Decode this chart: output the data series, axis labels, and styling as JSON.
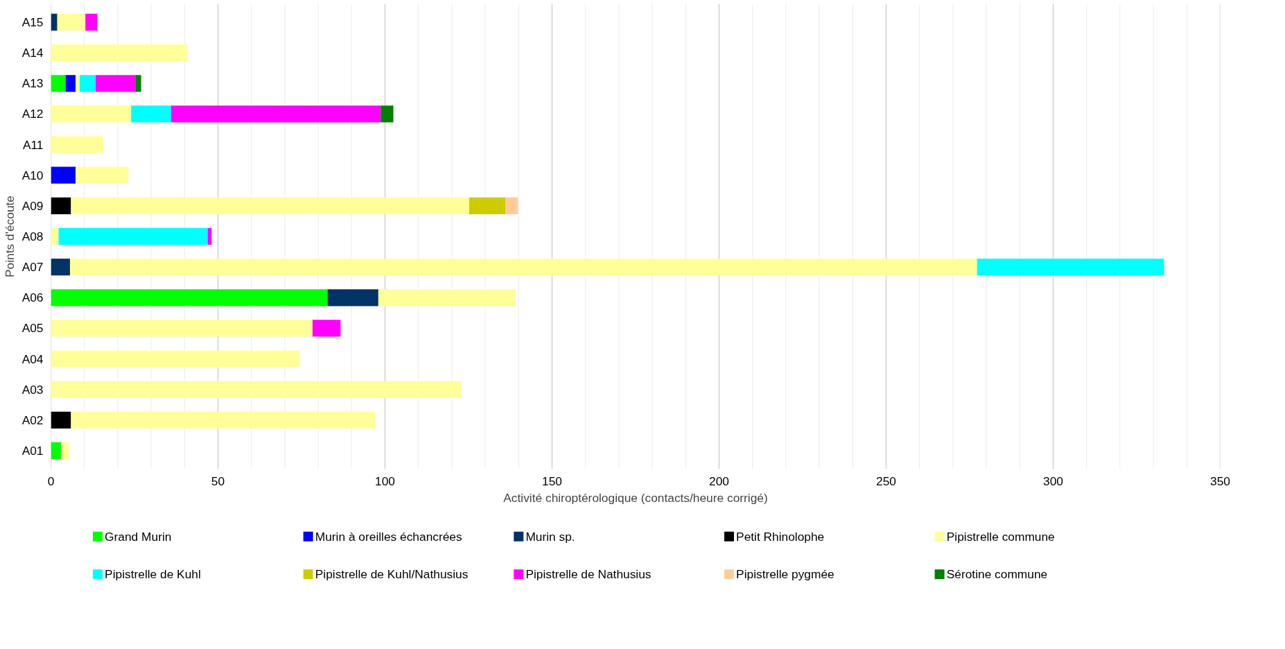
{
  "chart_data": {
    "type": "bar",
    "orientation": "horizontal",
    "stacked": true,
    "xlabel": "Activité chiroptérologique (contacts/heure corrigé)",
    "ylabel": "Points d'écoute",
    "categories": [
      "A15",
      "A14",
      "A13",
      "A12",
      "A11",
      "A10",
      "A09",
      "A08",
      "A07",
      "A06",
      "A05",
      "A04",
      "A03",
      "A02",
      "A01"
    ],
    "series": [
      {
        "name": "Grand Murin",
        "color": "#00ff00",
        "values": [
          null,
          null,
          4.4,
          null,
          null,
          null,
          null,
          null,
          null,
          82.8,
          null,
          null,
          null,
          null,
          3.0
        ]
      },
      {
        "name": "Murin à oreilles échancrées",
        "color": "#0000ff",
        "values": [
          null,
          null,
          3.0,
          null,
          null,
          7.4,
          null,
          null,
          null,
          null,
          null,
          null,
          null,
          null,
          null
        ]
      },
      {
        "name": "Murin sp.",
        "color": "#003366",
        "values": [
          1.9,
          null,
          null,
          null,
          null,
          null,
          null,
          null,
          5.7,
          15.2,
          null,
          null,
          null,
          null,
          null
        ]
      },
      {
        "name": "Petit Rhinolophe",
        "color": "#000000",
        "values": [
          null,
          null,
          null,
          null,
          null,
          null,
          6.0,
          null,
          null,
          null,
          null,
          null,
          null,
          6.0,
          null
        ]
      },
      {
        "name": "Pipistrelle commune",
        "color": "#ffff99",
        "values": [
          8.4,
          40.9,
          1.2,
          24.0,
          15.7,
          15.8,
          119.2,
          2.3,
          271.5,
          41.1,
          78.3,
          74.5,
          122.8,
          91.1,
          2.4
        ]
      },
      {
        "name": "Pipistrelle de Kuhl",
        "color": "#00ffff",
        "values": [
          null,
          null,
          4.8,
          12.0,
          null,
          null,
          null,
          44.6,
          56.0,
          null,
          null,
          null,
          null,
          null,
          null
        ]
      },
      {
        "name": "Pipistrelle de Kuhl/Nathusius",
        "color": "#cccc00",
        "values": [
          null,
          null,
          null,
          null,
          null,
          null,
          10.9,
          null,
          null,
          null,
          null,
          null,
          null,
          null,
          null
        ]
      },
      {
        "name": "Pipistrelle de Nathusius",
        "color": "#ff00ff",
        "values": [
          3.6,
          null,
          12.0,
          62.7,
          null,
          null,
          null,
          1.2,
          null,
          null,
          8.4,
          null,
          null,
          null,
          null
        ]
      },
      {
        "name": "Pipistrelle pygmée",
        "color": "#ffcc99",
        "values": [
          null,
          null,
          null,
          null,
          null,
          null,
          3.7,
          null,
          null,
          null,
          null,
          null,
          null,
          null,
          null
        ]
      },
      {
        "name": "Sérotine commune",
        "color": "#008000",
        "values": [
          null,
          null,
          1.6,
          3.8,
          null,
          null,
          null,
          null,
          null,
          null,
          null,
          null,
          null,
          null,
          null
        ]
      }
    ],
    "xlim": [
      0,
      350
    ],
    "xticks": [
      0,
      {
        "value": 10,
        "label": null
      },
      {
        "value": 20,
        "label": null
      },
      {
        "value": 30,
        "label": null
      },
      {
        "value": 40,
        "label": null
      },
      50,
      {
        "value": 60,
        "label": null
      },
      {
        "value": 70,
        "label": null
      },
      {
        "value": 80,
        "label": null
      },
      {
        "value": 90,
        "label": null
      },
      100,
      {
        "value": 110,
        "label": null
      },
      {
        "value": 120,
        "label": null
      },
      {
        "value": 130,
        "label": null
      },
      {
        "value": 140,
        "label": null
      },
      150,
      {
        "value": 160,
        "label": null
      },
      {
        "value": 170,
        "label": null
      },
      {
        "value": 180,
        "label": null
      },
      {
        "value": 190,
        "label": null
      },
      200,
      {
        "value": 210,
        "label": null
      },
      {
        "value": 220,
        "label": null
      },
      {
        "value": 230,
        "label": null
      },
      {
        "value": 240,
        "label": null
      },
      250,
      {
        "value": 260,
        "label": null
      },
      {
        "value": 270,
        "label": null
      },
      {
        "value": 280,
        "label": null
      },
      {
        "value": 290,
        "label": null
      },
      300,
      {
        "value": 310,
        "label": null
      },
      {
        "value": 320,
        "label": null
      },
      {
        "value": 330,
        "label": null
      },
      {
        "value": 340,
        "label": null
      },
      350
    ],
    "grid": "x",
    "legend": "bottom"
  }
}
